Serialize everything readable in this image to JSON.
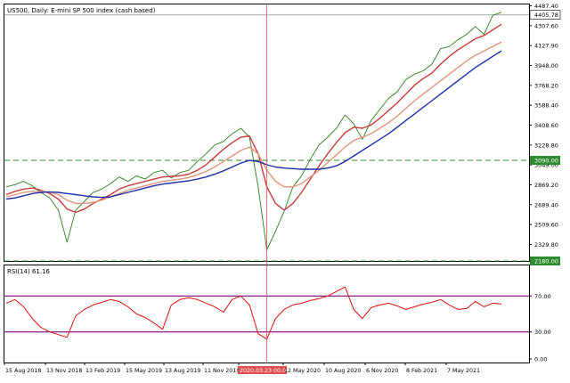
{
  "chart_data": [
    {
      "type": "line",
      "title": "US500, Daily:  E-mini SP 500 index (cash based)",
      "ylim": [
        2180,
        4500
      ],
      "y_ticks": [
        "4487.40",
        "4307.60",
        "4127.90",
        "3948.00",
        "3768.20",
        "3588.40",
        "3408.60",
        "3228.80",
        "3049.00",
        "2869.20",
        "2689.40",
        "2509.60",
        "2329.80"
      ],
      "x_tick_labels": [
        "15 Aug 2018",
        "13 Nov 2018",
        "13 Feb 2019",
        "15 May 2019",
        "13 Aug 2019",
        "11 Nov 2019",
        "2020.03.23 00:00",
        "12 May 2020",
        "10 Aug 2020",
        "6 Nov 2020",
        "8 Feb 2021",
        "7 May 2021"
      ],
      "current_price_label": "4405.78",
      "current_price": 4405.78,
      "horizontal_levels": [
        {
          "value": 3090,
          "label": "3090.00",
          "color": "#2e8b2e",
          "style": "dashed"
        },
        {
          "value": 2180,
          "label": "2180.00",
          "color": "#2e8b2e",
          "style": "dashed"
        }
      ],
      "crosshair": {
        "label": "2020.03.23 00:00",
        "color": "#e05050"
      },
      "series": [
        {
          "color": "#2e7d1e",
          "style": "price",
          "values": [
            2850,
            2870,
            2900,
            2860,
            2800,
            2750,
            2640,
            2350,
            2640,
            2720,
            2800,
            2830,
            2880,
            2940,
            2900,
            2950,
            2920,
            2980,
            3000,
            2930,
            2980,
            3000,
            3080,
            3150,
            3230,
            3260,
            3330,
            3380,
            3300,
            2850,
            2280,
            2450,
            2630,
            2850,
            2950,
            3100,
            3230,
            3300,
            3380,
            3500,
            3420,
            3280,
            3450,
            3550,
            3650,
            3710,
            3820,
            3870,
            3900,
            3960,
            4100,
            4120,
            4180,
            4230,
            4300,
            4230,
            4400,
            4430
          ]
        },
        {
          "color": "#c83c3c",
          "style": "ma-fast",
          "values": [
            2780,
            2810,
            2830,
            2840,
            2820,
            2790,
            2740,
            2650,
            2620,
            2650,
            2700,
            2740,
            2780,
            2830,
            2860,
            2880,
            2900,
            2920,
            2940,
            2945,
            2950,
            2965,
            3000,
            3050,
            3120,
            3190,
            3250,
            3300,
            3310,
            3150,
            2850,
            2700,
            2640,
            2700,
            2800,
            2920,
            3040,
            3150,
            3250,
            3340,
            3390,
            3380,
            3410,
            3470,
            3540,
            3610,
            3690,
            3770,
            3830,
            3880,
            3960,
            4030,
            4090,
            4140,
            4190,
            4220,
            4270,
            4320
          ]
        },
        {
          "color": "#e0967a",
          "style": "ma-medium",
          "values": [
            2760,
            2780,
            2800,
            2810,
            2810,
            2800,
            2780,
            2730,
            2700,
            2700,
            2710,
            2730,
            2760,
            2790,
            2820,
            2840,
            2860,
            2880,
            2900,
            2910,
            2920,
            2935,
            2960,
            2990,
            3030,
            3080,
            3130,
            3180,
            3210,
            3150,
            3000,
            2900,
            2850,
            2850,
            2880,
            2940,
            3000,
            3070,
            3140,
            3210,
            3270,
            3300,
            3330,
            3380,
            3430,
            3490,
            3560,
            3630,
            3690,
            3750,
            3810,
            3870,
            3930,
            3990,
            4040,
            4080,
            4120,
            4160
          ]
        },
        {
          "color": "#1c2fa8",
          "style": "ma-slow",
          "values": [
            2740,
            2750,
            2770,
            2790,
            2800,
            2805,
            2800,
            2790,
            2780,
            2770,
            2760,
            2755,
            2760,
            2780,
            2800,
            2820,
            2840,
            2860,
            2875,
            2885,
            2895,
            2905,
            2920,
            2940,
            2965,
            2995,
            3030,
            3065,
            3090,
            3080,
            3050,
            3030,
            3020,
            3015,
            3010,
            3010,
            3010,
            3020,
            3040,
            3080,
            3130,
            3180,
            3230,
            3280,
            3330,
            3390,
            3450,
            3510,
            3570,
            3630,
            3690,
            3750,
            3810,
            3870,
            3930,
            3980,
            4030,
            4080
          ]
        }
      ]
    },
    {
      "type": "line",
      "title": "RSI(14) 61.16",
      "ylim": [
        0,
        100
      ],
      "y_ticks": [
        "70.00",
        "30.00",
        "0.00"
      ],
      "levels": [
        70,
        30
      ],
      "level_color": "#800080",
      "series": [
        {
          "color": "#e01010",
          "values": [
            62,
            66,
            58,
            45,
            35,
            30,
            27,
            24,
            48,
            55,
            60,
            63,
            66,
            64,
            58,
            50,
            46,
            40,
            33,
            60,
            66,
            68,
            66,
            62,
            58,
            52,
            66,
            70,
            60,
            28,
            22,
            45,
            55,
            60,
            62,
            65,
            67,
            70,
            75,
            80,
            55,
            45,
            57,
            60,
            62,
            59,
            55,
            58,
            61,
            63,
            66,
            60,
            55,
            56,
            64,
            58,
            62,
            61.16
          ]
        }
      ]
    }
  ]
}
